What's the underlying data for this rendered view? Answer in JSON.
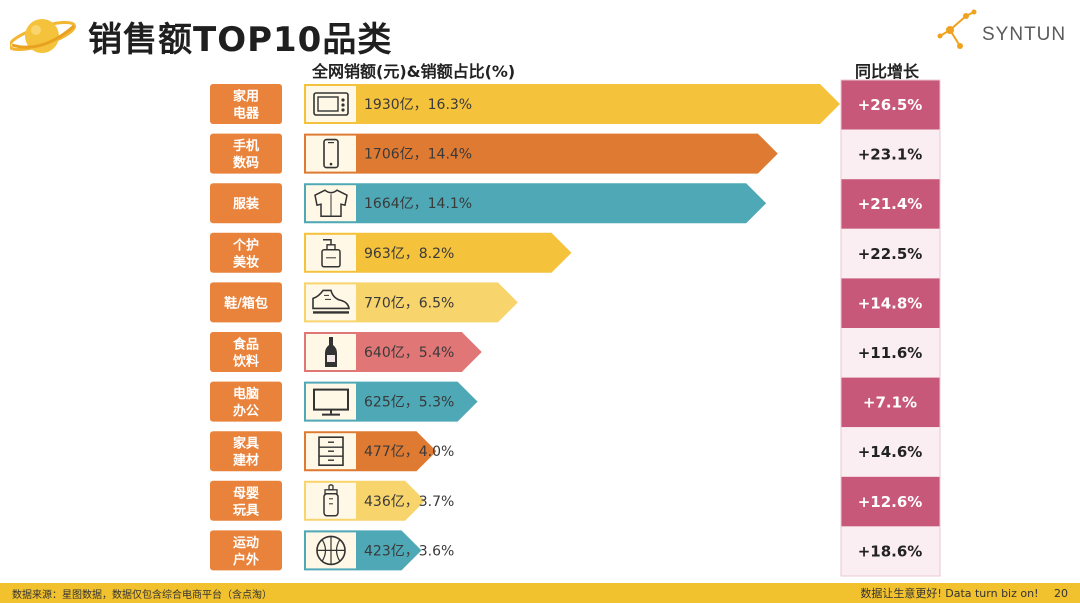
{
  "title": "销售额TOP10品类",
  "logo_text": "SYNTUN",
  "headers": {
    "sales": "全网销额(元)&销额占比(%)",
    "growth": "同比增长"
  },
  "colors": {
    "yellow": "#f5c23c",
    "orange": "#df7a32",
    "teal": "#4ea8b6",
    "lightyellow": "#f8d46c",
    "pink": "#e07676",
    "tag": "#e9823b",
    "growth_dark": "#c85879",
    "growth_light": "#fbeef2",
    "footer": "#f2c12e"
  },
  "chart_data": {
    "type": "bar",
    "orientation": "horizontal",
    "categories": [
      [
        "家用",
        "电器"
      ],
      [
        "手机",
        "数码"
      ],
      [
        "服装"
      ],
      [
        "个护",
        "美妆"
      ],
      [
        "鞋/箱包"
      ],
      [
        "食品",
        "饮料"
      ],
      [
        "电脑",
        "办公"
      ],
      [
        "家具",
        "建材"
      ],
      [
        "母婴",
        "玩具"
      ],
      [
        "运动",
        "户外"
      ]
    ],
    "values": [
      1930,
      1706,
      1664,
      963,
      770,
      640,
      625,
      477,
      436,
      423
    ],
    "value_labels": [
      "1930亿，16.3%",
      "1706亿，14.4%",
      "1664亿，14.1%",
      "963亿，8.2%",
      "770亿，6.5%",
      "640亿，5.4%",
      "625亿，5.3%",
      "477亿，4.0%",
      "436亿，3.7%",
      "423亿，3.6%"
    ],
    "shares": [
      16.3,
      14.4,
      14.1,
      8.2,
      6.5,
      5.4,
      5.3,
      4.0,
      3.7,
      3.6
    ],
    "growth_labels": [
      "+26.5%",
      "+23.1%",
      "+21.4%",
      "+22.5%",
      "+14.8%",
      "+11.6%",
      "+7.1%",
      "+14.6%",
      "+12.6%",
      "+18.6%"
    ],
    "growth": [
      26.5,
      23.1,
      21.4,
      22.5,
      14.8,
      11.6,
      7.1,
      14.6,
      12.6,
      18.6
    ],
    "bar_colors": [
      "yellow",
      "orange",
      "teal",
      "yellow",
      "lightyellow",
      "pink",
      "teal",
      "orange",
      "lightyellow",
      "teal"
    ],
    "icons": [
      "microwave-icon",
      "phone-icon",
      "shirt-icon",
      "pump-bottle-icon",
      "sneaker-icon",
      "wine-bottle-icon",
      "monitor-icon",
      "drawer-cabinet-icon",
      "baby-bottle-icon",
      "basketball-icon"
    ],
    "xlim": [
      0,
      1930
    ]
  },
  "footer": {
    "source": "数据来源：星图数据，数据仅包含综合电商平台（含点淘）",
    "slogan": "数据让生意更好! Data turn biz on!",
    "page": "20"
  }
}
